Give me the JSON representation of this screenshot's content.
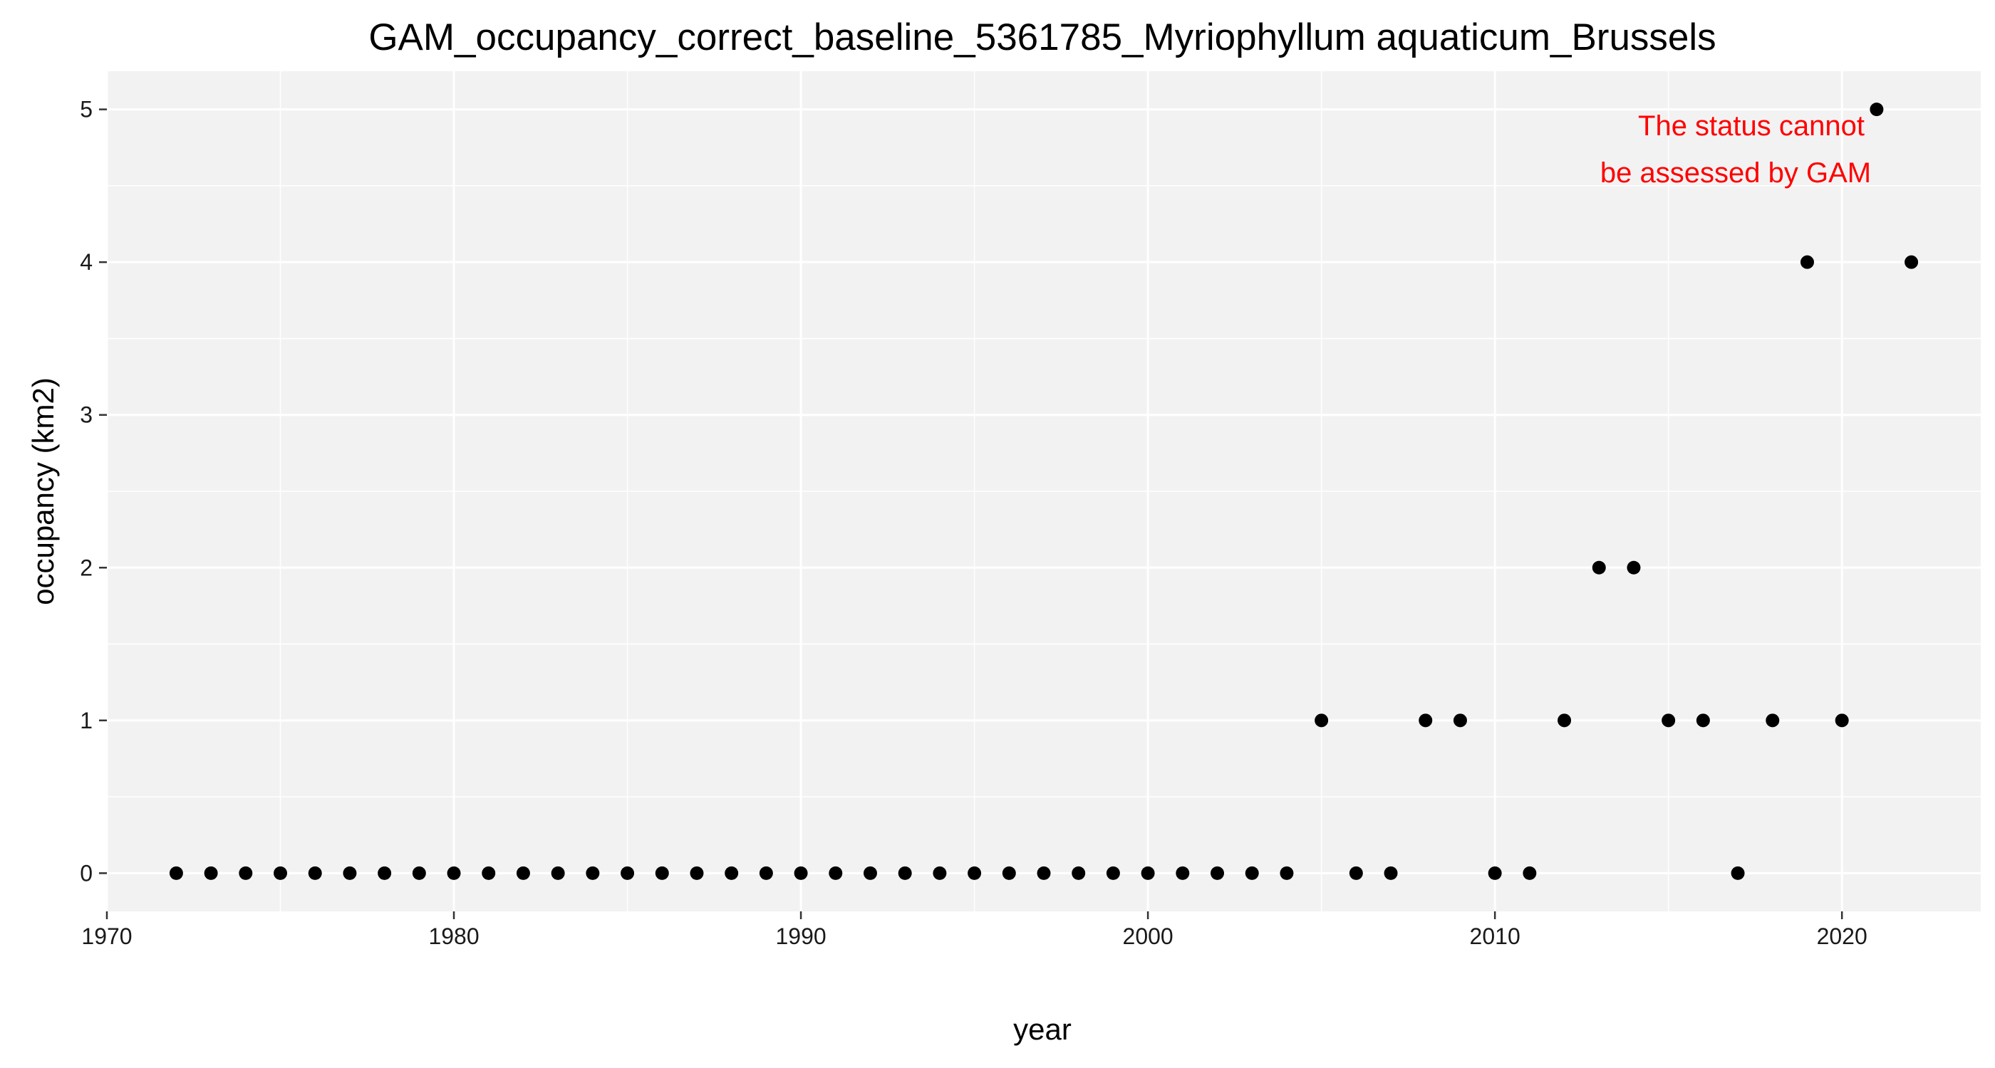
{
  "chart_data": {
    "type": "scatter",
    "title": "GAM_occupancy_correct_baseline_5361785_Myriophyllum aquaticum_Brussels",
    "xlabel": "year",
    "ylabel": "occupancy (km2)",
    "xlim": [
      1970,
      2024
    ],
    "ylim": [
      -0.25,
      5.25
    ],
    "x_ticks": [
      1970,
      1980,
      1990,
      2000,
      2010,
      2020
    ],
    "y_ticks": [
      0,
      1,
      2,
      3,
      4,
      5
    ],
    "grid": true,
    "annotation": {
      "lines": [
        "The status cannot",
        "be assessed by GAM"
      ],
      "color": "#ff0000"
    },
    "point_color": "#000000",
    "panel_background": "#f2f2f2",
    "gridline_color": "#ffffff",
    "x": [
      1972,
      1973,
      1974,
      1975,
      1976,
      1977,
      1978,
      1979,
      1980,
      1981,
      1982,
      1983,
      1984,
      1985,
      1986,
      1987,
      1988,
      1989,
      1990,
      1991,
      1992,
      1993,
      1994,
      1995,
      1996,
      1997,
      1998,
      1999,
      2000,
      2001,
      2002,
      2003,
      2004,
      2005,
      2006,
      2007,
      2008,
      2009,
      2010,
      2011,
      2012,
      2013,
      2014,
      2015,
      2016,
      2017,
      2018,
      2019,
      2020,
      2021,
      2022
    ],
    "y": [
      0,
      0,
      0,
      0,
      0,
      0,
      0,
      0,
      0,
      0,
      0,
      0,
      0,
      0,
      0,
      0,
      0,
      0,
      0,
      0,
      0,
      0,
      0,
      0,
      0,
      0,
      0,
      0,
      0,
      0,
      0,
      0,
      0,
      1,
      0,
      0,
      1,
      1,
      0,
      0,
      1,
      2,
      2,
      1,
      1,
      0,
      1,
      4,
      1,
      5,
      4
    ]
  }
}
